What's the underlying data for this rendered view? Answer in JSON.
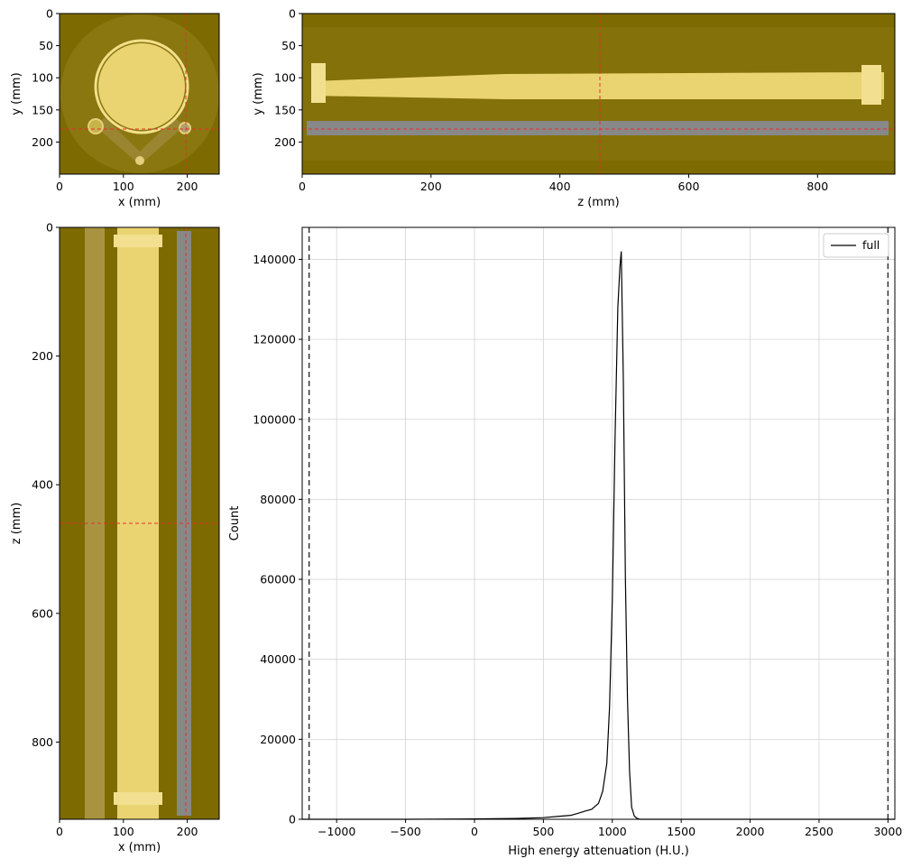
{
  "colors": {
    "panel_bg": "#7d6a00",
    "sample": "#ead471",
    "crosshair": "#e8302a",
    "mask": "#888888",
    "histogram_line": "#000000",
    "limit_line": "#333333"
  },
  "chart_data": [
    {
      "type": "image",
      "view": "axial-slice",
      "xlabel": "x (mm)",
      "ylabel": "y (mm)",
      "xlim": [
        0,
        250
      ],
      "ylim": [
        250,
        0
      ],
      "xticks": [
        "0",
        "100",
        "200"
      ],
      "yticks": [
        "0",
        "50",
        "100",
        "150",
        "200"
      ],
      "crosshair": {
        "x": 197,
        "y": 180
      }
    },
    {
      "type": "image",
      "view": "coronal-slice",
      "xlabel": "z (mm)",
      "ylabel": "y (mm)",
      "xlim": [
        0,
        920
      ],
      "ylim": [
        250,
        0
      ],
      "xticks": [
        "0",
        "200",
        "400",
        "600",
        "800"
      ],
      "yticks": [
        "0",
        "50",
        "100",
        "150",
        "200"
      ],
      "crosshair": {
        "x": 462,
        "y": 180
      }
    },
    {
      "type": "image",
      "view": "sagittal-slice",
      "xlabel": "x (mm)",
      "ylabel": "z (mm)",
      "xlim": [
        0,
        250
      ],
      "ylim": [
        920,
        0
      ],
      "xticks": [
        "0",
        "100",
        "200"
      ],
      "yticks": [
        "0",
        "200",
        "400",
        "600",
        "800"
      ],
      "crosshair": {
        "x": 197,
        "y": 462
      }
    },
    {
      "type": "line",
      "xlabel": "High energy attenuation (H.U.)",
      "ylabel": "Count",
      "xlim": [
        -1250,
        3050
      ],
      "ylim": [
        0,
        148000
      ],
      "xticks": [
        -1000,
        -500,
        0,
        500,
        1000,
        1500,
        2000,
        2500,
        3000
      ],
      "yticks": [
        0,
        20000,
        40000,
        60000,
        80000,
        100000,
        120000,
        140000
      ],
      "xtick_labels": [
        "−1000",
        "−500",
        "0",
        "500",
        "1000",
        "1500",
        "2000",
        "2500",
        "3000"
      ],
      "ytick_labels": [
        "0",
        "20000",
        "40000",
        "60000",
        "80000",
        "100000",
        "120000",
        "140000"
      ],
      "grid": true,
      "legend": "top-right",
      "vlines": [
        -1200,
        3000
      ],
      "series": [
        {
          "name": "full",
          "x": [
            -1250,
            -500,
            0,
            300,
            500,
            600,
            700,
            750,
            800,
            850,
            900,
            930,
            960,
            980,
            1000,
            1020,
            1040,
            1055,
            1065,
            1080,
            1095,
            1110,
            1125,
            1140,
            1160,
            1180,
            1200,
            1300,
            3050
          ],
          "y": [
            0,
            0,
            100,
            200,
            400,
            700,
            1000,
            1500,
            2000,
            2500,
            4000,
            7000,
            14000,
            28000,
            55000,
            95000,
            128000,
            138000,
            142000,
            110000,
            60000,
            30000,
            12000,
            3000,
            800,
            200,
            0,
            0,
            0
          ]
        }
      ]
    }
  ]
}
